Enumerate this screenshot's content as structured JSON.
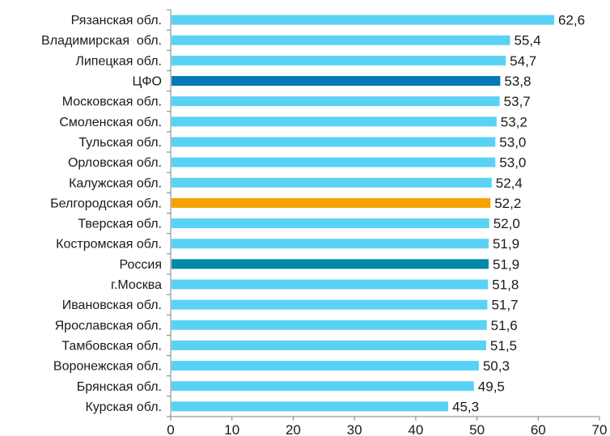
{
  "chart_data": {
    "type": "bar",
    "orientation": "horizontal",
    "categories": [
      "Рязанская обл.",
      "Владимирская  обл.",
      "Липецкая обл.",
      "ЦФО",
      "Московская обл.",
      "Смоленская обл.",
      "Тульская обл.",
      "Орловская обл.",
      "Калужская обл.",
      "Белгородская обл.",
      "Тверская обл.",
      "Костромская обл.",
      "Россия",
      "г.Москва",
      "Ивановская обл.",
      "Ярославская обл.",
      "Тамбовская обл.",
      "Воронежская обл.",
      "Брянская обл.",
      "Курская обл."
    ],
    "values": [
      62.6,
      55.4,
      54.7,
      53.8,
      53.7,
      53.2,
      53.0,
      53.0,
      52.4,
      52.2,
      52.0,
      51.9,
      51.9,
      51.8,
      51.7,
      51.6,
      51.5,
      50.3,
      49.5,
      45.3
    ],
    "value_labels": [
      "62,6",
      "55,4",
      "54,7",
      "53,8",
      "53,7",
      "53,2",
      "53,0",
      "53,0",
      "52,4",
      "52,2",
      "52,0",
      "51,9",
      "51,9",
      "51,8",
      "51,7",
      "51,6",
      "51,5",
      "50,3",
      "49,5",
      "45,3"
    ],
    "bar_colors": [
      "#5ad2f6",
      "#5ad2f6",
      "#5ad2f6",
      "#0479b5",
      "#5ad2f6",
      "#5ad2f6",
      "#5ad2f6",
      "#5ad2f6",
      "#5ad2f6",
      "#f5a100",
      "#5ad2f6",
      "#5ad2f6",
      "#0089a8",
      "#5ad2f6",
      "#5ad2f6",
      "#5ad2f6",
      "#5ad2f6",
      "#5ad2f6",
      "#5ad2f6",
      "#5ad2f6"
    ],
    "xticks": [
      0,
      10,
      20,
      30,
      40,
      50,
      60,
      70
    ],
    "xlim": [
      0,
      70
    ],
    "grid": false,
    "title": "",
    "xlabel": "",
    "ylabel": ""
  }
}
